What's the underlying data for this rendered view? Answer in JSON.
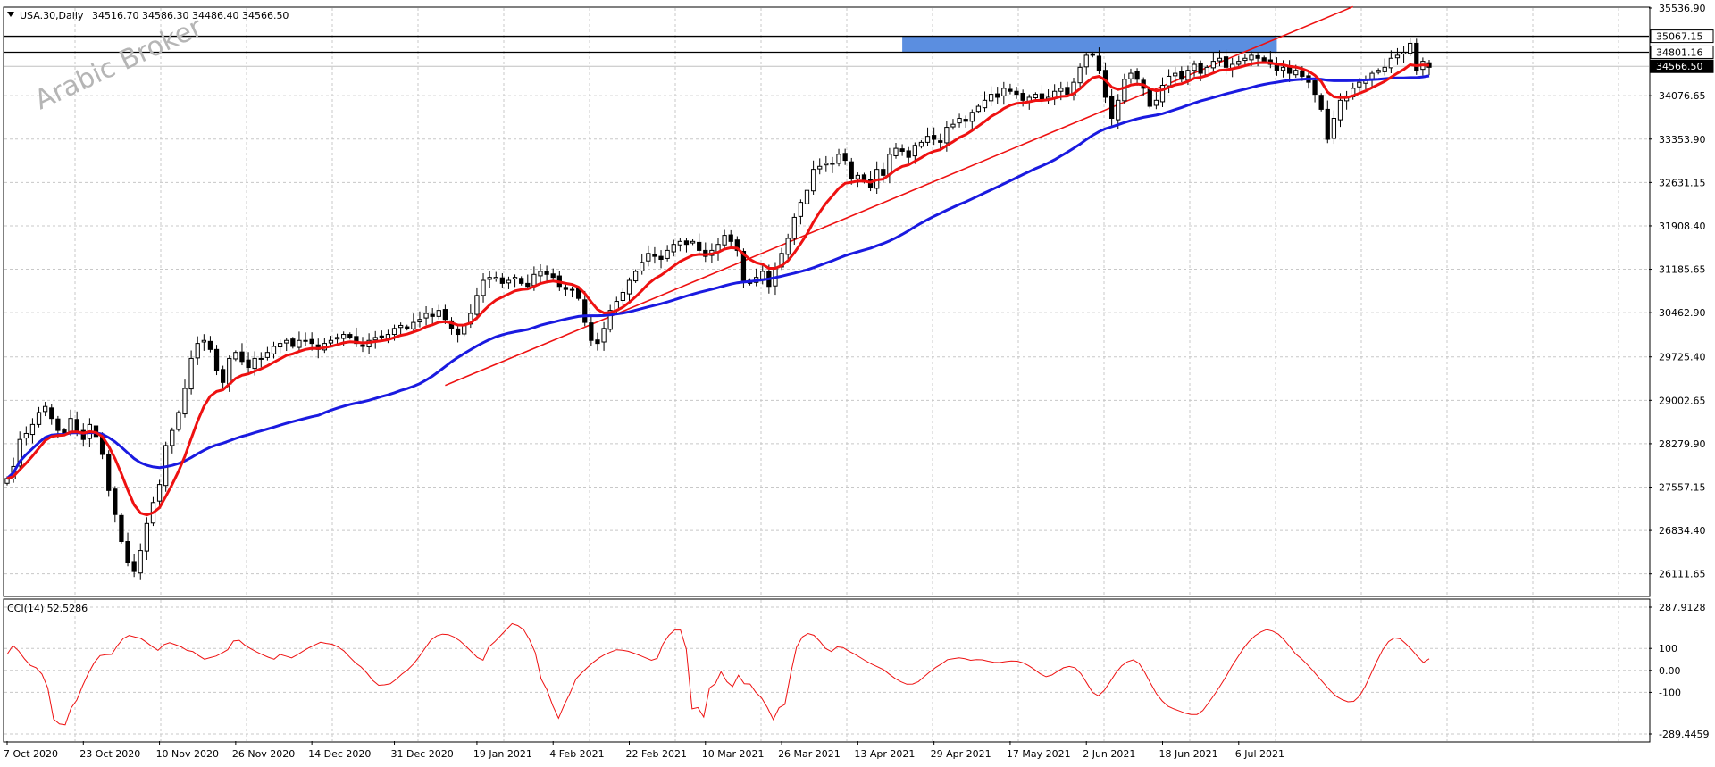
{
  "header": {
    "symbol_text": "USA.30,Daily",
    "ohlc_text": "34516.70 34586.30 34486.40 34566.50"
  },
  "watermark": "Arabic Broker",
  "indicator_label": "CCI(14) 52.5286",
  "colors": {
    "background": "#ffffff",
    "grid": "#c8c8c8",
    "candle_bull_body": "#ffffff",
    "candle_bear_body": "#000000",
    "ma_fast": "#ee1111",
    "ma_slow": "#1a1ae0",
    "trendline": "#ee1111",
    "zone": "#5b8ee0",
    "cci_line": "#ee1111"
  },
  "chart_data": [
    {
      "type": "candlestick",
      "symbol": "USA.30",
      "timeframe": "Daily",
      "ylim": [
        25750.0,
        35536.9
      ],
      "y_ticks": [
        35536.9,
        34076.65,
        33353.9,
        32631.15,
        31908.4,
        31185.65,
        30462.9,
        29725.4,
        29002.65,
        28279.9,
        27557.15,
        26834.4,
        26111.65
      ],
      "x_labels": [
        "7 Oct 2020",
        "23 Oct 2020",
        "10 Nov 2020",
        "26 Nov 2020",
        "14 Dec 2020",
        "31 Dec 2020",
        "19 Jan 2021",
        "4 Feb 2021",
        "22 Feb 2021",
        "10 Mar 2021",
        "26 Mar 2021",
        "13 Apr 2021",
        "29 Apr 2021",
        "17 May 2021",
        "2 Jun 2021",
        "18 Jun 2021",
        "6 Jul 2021"
      ],
      "horizontal_levels": [
        {
          "value": 35067.15,
          "label": "35067.15"
        },
        {
          "value": 34801.16,
          "label": "34801.16"
        }
      ],
      "current_price": {
        "value": 34566.5,
        "label": "34566.50"
      },
      "resistance_zone": {
        "from": 34801.16,
        "to": 35067.15,
        "start_date": "22 Apr 2021",
        "end_date": "14 Jul 2021"
      },
      "trendline": {
        "start": {
          "date": "12 Jan 2021",
          "value": 29250
        },
        "end": {
          "date": "30 Jul 2021",
          "value": 35560
        }
      },
      "closes": [
        27700,
        27900,
        28350,
        28450,
        28600,
        28800,
        28900,
        28700,
        28500,
        28450,
        28700,
        28500,
        28350,
        28600,
        28400,
        28100,
        27500,
        27100,
        26650,
        26300,
        26150,
        26500,
        26950,
        27300,
        27600,
        28250,
        28500,
        28800,
        29200,
        29700,
        29950,
        30000,
        29850,
        29500,
        29300,
        29700,
        29800,
        29650,
        29550,
        29700,
        29700,
        29800,
        29900,
        29950,
        30000,
        29900,
        30000,
        30000,
        29950,
        29850,
        29950,
        30000,
        30050,
        30100,
        30050,
        29950,
        29900,
        30000,
        30050,
        30050,
        30100,
        30200,
        30250,
        30200,
        30300,
        30350,
        30450,
        30400,
        30500,
        30350,
        30200,
        30100,
        30250,
        30450,
        30750,
        31000,
        31050,
        31050,
        30950,
        31000,
        31050,
        30950,
        30900,
        31100,
        31150,
        31100,
        31050,
        30900,
        30850,
        30850,
        30700,
        30300,
        30000,
        29950,
        30200,
        30500,
        30650,
        30800,
        31000,
        31150,
        31300,
        31450,
        31400,
        31350,
        31500,
        31600,
        31650,
        31600,
        31650,
        31500,
        31400,
        31500,
        31600,
        31750,
        31650,
        31500,
        31000,
        30950,
        31050,
        31150,
        30900,
        31200,
        31450,
        31700,
        32050,
        32300,
        32500,
        32850,
        32900,
        32950,
        32950,
        33100,
        33000,
        32700,
        32750,
        32650,
        32550,
        32850,
        32750,
        33100,
        33200,
        33150,
        33050,
        33250,
        33300,
        33400,
        33350,
        33300,
        33550,
        33600,
        33700,
        33650,
        33800,
        33900,
        34000,
        34100,
        34050,
        34200,
        34150,
        34100,
        34000,
        34050,
        34100,
        34000,
        34050,
        34150,
        34200,
        34100,
        34300,
        34550,
        34750,
        34750,
        34500,
        34050,
        33700,
        34000,
        34350,
        34450,
        34350,
        34200,
        33900,
        34000,
        34250,
        34400,
        34450,
        34350,
        34500,
        34600,
        34450,
        34550,
        34650,
        34700,
        34550,
        34600,
        34650,
        34700,
        34750,
        34700,
        34650,
        34600,
        34500,
        34550,
        34450,
        34500,
        34400,
        34300,
        34100,
        33850,
        33350,
        33700,
        34000,
        34050,
        34200,
        34300,
        34350,
        34450,
        34500,
        34550,
        34700,
        34750,
        34800,
        34950,
        34500,
        34650,
        34550
      ]
    },
    {
      "type": "line",
      "title": "CCI(14) 52.5286",
      "ylim": [
        -289.4459,
        287.9128
      ],
      "y_ticks": [
        287.9128,
        100,
        0.0,
        -100,
        -289.4459
      ],
      "series": [
        {
          "values": [
            73,
            113,
            88,
            52,
            23,
            12,
            -17,
            -80,
            -222,
            -244,
            -248,
            -172,
            -135,
            -70,
            -13,
            35,
            67,
            71,
            73,
            113,
            145,
            159,
            152,
            146,
            128,
            108,
            91,
            117,
            126,
            117,
            107,
            91,
            86,
            67,
            51,
            58,
            65,
            79,
            94,
            134,
            137,
            114,
            98,
            84,
            71,
            60,
            51,
            73,
            65,
            57,
            71,
            88,
            103,
            116,
            128,
            123,
            119,
            107,
            89,
            61,
            34,
            15,
            -13,
            -46,
            -68,
            -66,
            -61,
            -41,
            -17,
            3,
            29,
            63,
            101,
            138,
            157,
            165,
            163,
            152,
            135,
            111,
            85,
            59,
            47,
            107,
            130,
            158,
            186,
            213,
            204,
            185,
            140,
            80,
            -39,
            -88,
            -160,
            -218,
            -156,
            -103,
            -39,
            -11,
            14,
            37,
            57,
            73,
            84,
            94,
            92,
            87,
            78,
            68,
            57,
            46,
            55,
            121,
            160,
            184,
            184,
            98,
            -175,
            -169,
            -212,
            -80,
            -61,
            -6,
            -51,
            -74,
            -22,
            -61,
            -62,
            -100,
            -126,
            -170,
            -224,
            -170,
            -155,
            -15,
            105,
            152,
            168,
            160,
            133,
            100,
            86,
            107,
            104,
            88,
            74,
            58,
            42,
            28,
            16,
            3,
            -18,
            -37,
            -52,
            -63,
            -62,
            -51,
            -28,
            -6,
            14,
            30,
            49,
            53,
            57,
            53,
            46,
            49,
            48,
            42,
            37,
            36,
            40,
            43,
            42,
            35,
            21,
            4,
            -16,
            -29,
            -21,
            -4,
            12,
            18,
            12,
            -15,
            -57,
            -100,
            -116,
            -92,
            -53,
            -12,
            20,
            39,
            48,
            32,
            -9,
            -59,
            -106,
            -139,
            -163,
            -175,
            -185,
            -195,
            -201,
            -201,
            -183,
            -147,
            -110,
            -70,
            -28,
            19,
            60,
            100,
            133,
            158,
            175,
            186,
            179,
            165,
            139,
            108,
            75,
            53,
            27,
            -2,
            -33,
            -63,
            -93,
            -118,
            -133,
            -143,
            -141,
            -117,
            -72,
            -14,
            42,
            94,
            131,
            148,
            144,
            121,
            94,
            63,
            36,
            53
          ]
        }
      ]
    }
  ]
}
